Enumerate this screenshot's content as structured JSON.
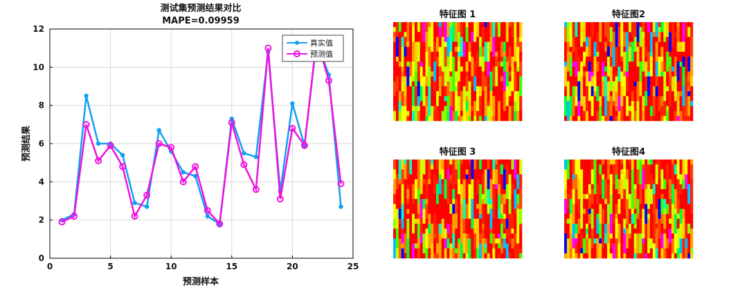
{
  "chart_data": [
    {
      "type": "line",
      "title": "测试集预测结果对比",
      "subtitle": "MAPE=0.09959",
      "xlabel": "预测样本",
      "ylabel": "预测结果",
      "xlim": [
        0,
        25
      ],
      "ylim": [
        0,
        12
      ],
      "xticks": [
        0,
        5,
        10,
        15,
        20,
        25
      ],
      "yticks": [
        0,
        2,
        4,
        6,
        8,
        10,
        12
      ],
      "grid": true,
      "legend_position": "top-right",
      "x": [
        1,
        2,
        3,
        4,
        5,
        6,
        7,
        8,
        9,
        10,
        11,
        12,
        13,
        14,
        15,
        16,
        17,
        18,
        19,
        20,
        21,
        22,
        23,
        24
      ],
      "series": [
        {
          "name": "真实值",
          "color": "#0fa0f0",
          "marker": "filled-circle",
          "values": [
            2.0,
            2.3,
            8.5,
            6.0,
            6.0,
            5.4,
            2.9,
            2.7,
            6.7,
            5.6,
            4.5,
            4.3,
            2.2,
            1.8,
            7.3,
            5.5,
            5.3,
            10.8,
            3.5,
            8.1,
            5.9,
            11.4,
            9.6,
            2.7
          ]
        },
        {
          "name": "预测值",
          "color": "#f010e0",
          "marker": "open-circle",
          "values": [
            1.9,
            2.2,
            7.0,
            5.1,
            5.9,
            4.8,
            2.2,
            3.3,
            6.0,
            5.8,
            4.0,
            4.8,
            2.5,
            1.8,
            7.1,
            4.9,
            3.6,
            11.0,
            3.1,
            6.8,
            5.9,
            11.5,
            9.3,
            3.9
          ]
        }
      ]
    },
    {
      "type": "heatmap",
      "title": "特征图 1",
      "colormap": "hsv"
    },
    {
      "type": "heatmap",
      "title": "特征图2",
      "colormap": "hsv"
    },
    {
      "type": "heatmap",
      "title": "特征图 3",
      "colormap": "hsv"
    },
    {
      "type": "heatmap",
      "title": "特征图4",
      "colormap": "hsv"
    }
  ]
}
